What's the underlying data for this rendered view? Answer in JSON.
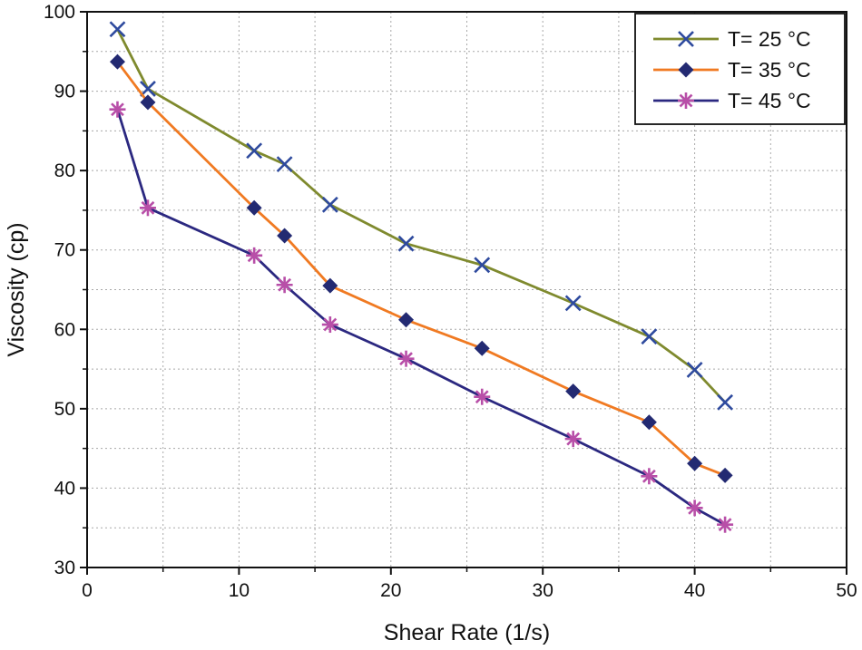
{
  "chart_data": {
    "type": "line",
    "title": "",
    "xlabel": "Shear Rate (1/s)",
    "ylabel": "Viscosity (cp)",
    "xlim": [
      0,
      50
    ],
    "ylim": [
      30,
      100
    ],
    "xticks": [
      0,
      10,
      20,
      30,
      40,
      50
    ],
    "yticks": [
      30,
      40,
      50,
      60,
      70,
      80,
      90,
      100
    ],
    "grid": true,
    "legend_position": "top-right",
    "series": [
      {
        "name": "T= 25 °C",
        "color": "#7f8a2e",
        "marker": "x",
        "marker_color": "#2e4a9e",
        "x": [
          2,
          4,
          11,
          13,
          16,
          21,
          26,
          32,
          37,
          40,
          42
        ],
        "y": [
          97.8,
          90.3,
          82.5,
          80.8,
          75.7,
          70.8,
          68.1,
          63.3,
          59.1,
          54.9,
          50.8
        ]
      },
      {
        "name": "T= 35 °C",
        "color": "#f07a22",
        "marker": "diamond",
        "marker_color": "#232a72",
        "x": [
          2,
          4,
          11,
          13,
          16,
          21,
          26,
          32,
          37,
          40,
          42
        ],
        "y": [
          93.7,
          88.6,
          75.3,
          71.8,
          65.5,
          61.2,
          57.6,
          52.2,
          48.3,
          43.1,
          41.6
        ]
      },
      {
        "name": "T= 45 °C",
        "color": "#2b2880",
        "marker": "asterisk",
        "marker_color": "#b84fa8",
        "x": [
          2,
          4,
          11,
          13,
          16,
          21,
          26,
          32,
          37,
          40,
          42
        ],
        "y": [
          87.7,
          75.3,
          69.3,
          65.6,
          60.6,
          56.3,
          51.5,
          46.2,
          41.5,
          37.5,
          35.4
        ]
      }
    ]
  }
}
